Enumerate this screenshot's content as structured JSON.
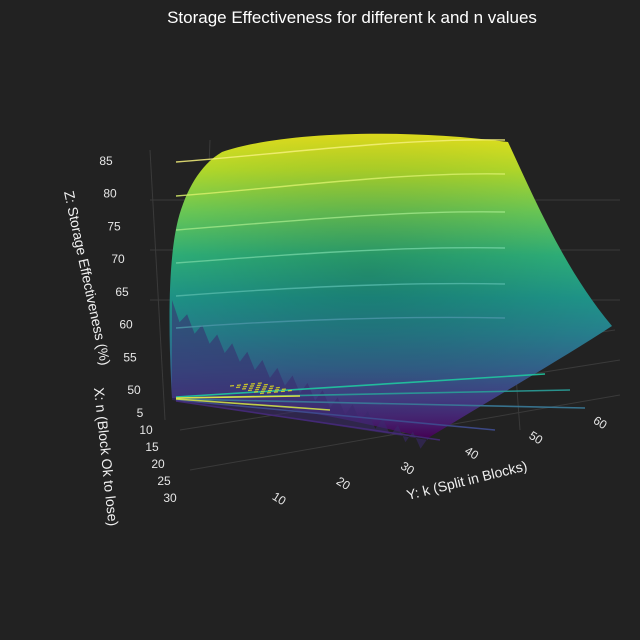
{
  "chart_data": {
    "type": "surface",
    "title": "Storage Effectiveness for different k and n values",
    "x_axis": {
      "label": "X: n (Block Ok to lose)",
      "ticks": [
        5,
        10,
        15,
        20,
        25,
        30
      ],
      "range": [
        1,
        30
      ]
    },
    "y_axis": {
      "label": "Y: k (Split in Blocks)",
      "ticks": [
        10,
        20,
        30,
        40,
        50,
        60
      ],
      "range": [
        1,
        64
      ]
    },
    "z_axis": {
      "label": "Z: Storage Effectiveness (%)",
      "ticks": [
        50,
        55,
        60,
        65,
        70,
        75,
        80,
        85
      ],
      "range": [
        48,
        88
      ]
    },
    "colorscale": "Viridis",
    "contour_lines": true,
    "grid": true,
    "legend": "none"
  }
}
